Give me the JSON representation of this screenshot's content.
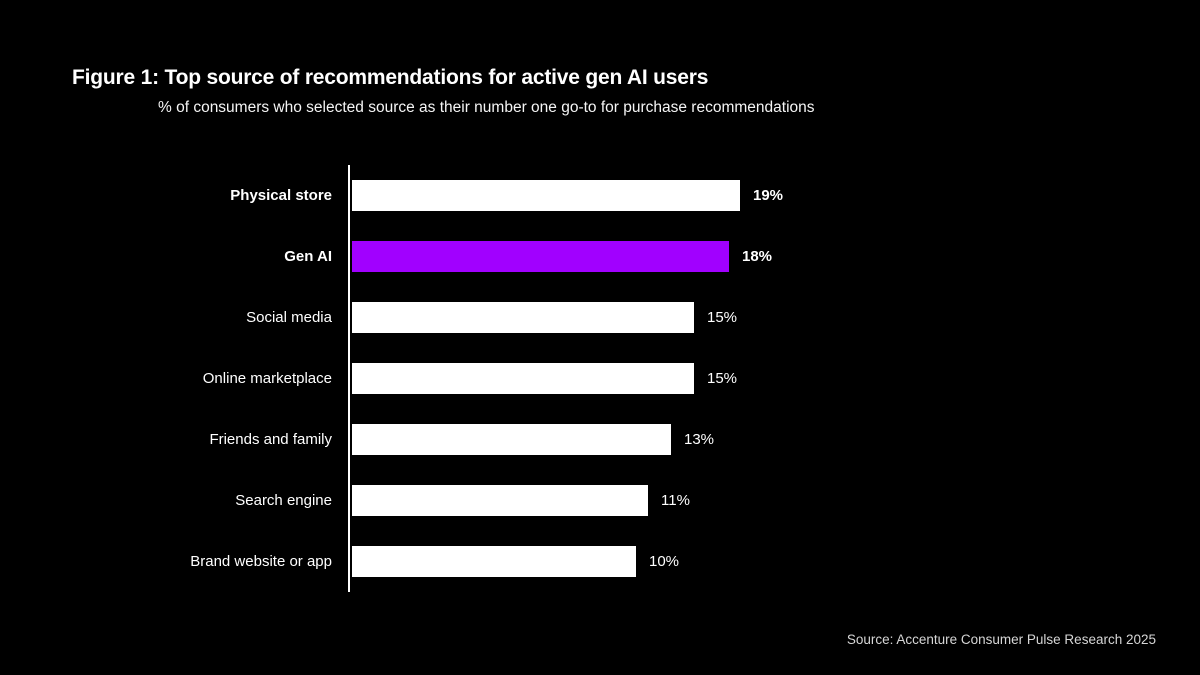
{
  "chart_data": {
    "type": "bar",
    "orientation": "horizontal",
    "title": "Figure 1: Top source of recommendations for active gen AI users",
    "subtitle": "% of consumers who selected source as their number one go-to for purchase recommendations",
    "source": "Source: Accenture Consumer Pulse Research 2025",
    "categories": [
      "Physical store",
      "Gen AI",
      "Social media",
      "Online marketplace",
      "Friends and family",
      "Search engine",
      "Brand website or app"
    ],
    "values": [
      19,
      18,
      15,
      15,
      13,
      11,
      10
    ],
    "value_labels": [
      "19%",
      "18%",
      "15%",
      "15%",
      "13%",
      "11%",
      "10%"
    ],
    "unit": "%",
    "highlight_index": 1,
    "bold_indices": [
      0,
      1
    ],
    "legend": "none",
    "grid": "off",
    "colors": {
      "background": "#000000",
      "bar": "#ffffff",
      "highlight": "#a100ff",
      "text": "#ffffff",
      "source_text": "#d6d6d6",
      "axis": "#ffffff"
    }
  }
}
